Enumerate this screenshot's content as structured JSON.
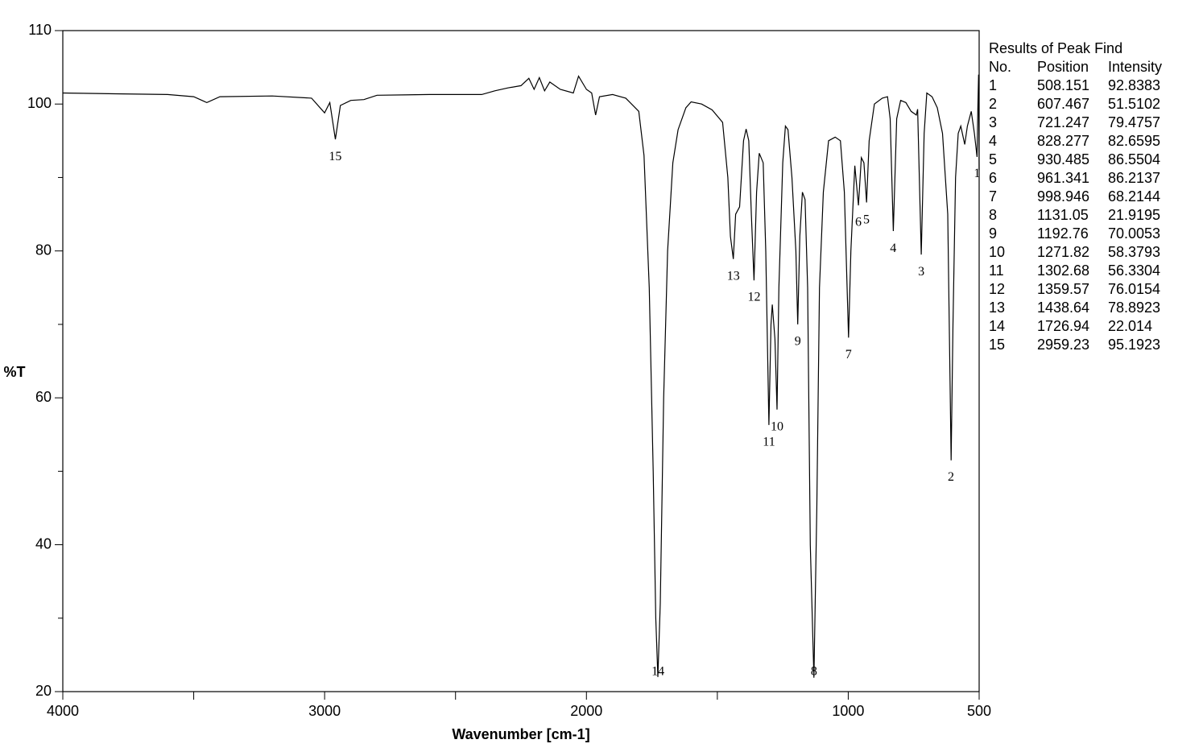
{
  "chart_data": {
    "type": "line",
    "xlabel": "Wavenumber [cm-1]",
    "ylabel": "%T",
    "color": "#000000",
    "xlim": [
      4000,
      500
    ],
    "ylim": [
      20,
      110
    ],
    "xticks": [
      4000,
      3000,
      2000,
      1000,
      500
    ],
    "xminor_ticks": [
      3500,
      2500,
      1500
    ],
    "yticks": [
      20,
      40,
      60,
      80,
      100,
      110
    ],
    "yminor_ticks": [
      30,
      50,
      70,
      90
    ],
    "x": [
      4000,
      3800,
      3600,
      3500,
      3450,
      3400,
      3200,
      3050,
      3000,
      2980,
      2959,
      2940,
      2900,
      2850,
      2800,
      2600,
      2400,
      2350,
      2300,
      2250,
      2220,
      2200,
      2180,
      2160,
      2140,
      2100,
      2050,
      2030,
      2000,
      1980,
      1965,
      1950,
      1900,
      1850,
      1800,
      1780,
      1760,
      1745,
      1735,
      1727,
      1718,
      1705,
      1690,
      1670,
      1650,
      1620,
      1600,
      1560,
      1520,
      1480,
      1460,
      1450,
      1439,
      1430,
      1415,
      1400,
      1390,
      1380,
      1370,
      1360,
      1350,
      1340,
      1325,
      1315,
      1303,
      1295,
      1290,
      1280,
      1272,
      1265,
      1250,
      1240,
      1230,
      1215,
      1200,
      1193,
      1185,
      1175,
      1165,
      1155,
      1145,
      1131,
      1120,
      1110,
      1095,
      1075,
      1050,
      1030,
      1015,
      999,
      990,
      975,
      961,
      950,
      940,
      930,
      920,
      900,
      870,
      850,
      840,
      828,
      815,
      800,
      780,
      760,
      740,
      735,
      721,
      710,
      700,
      680,
      660,
      640,
      620,
      607,
      600,
      590,
      580,
      570,
      555,
      545,
      530,
      518,
      508,
      505,
      502,
      500
    ],
    "values": [
      101.5,
      101.4,
      101.3,
      101.0,
      100.2,
      101.0,
      101.1,
      100.8,
      98.8,
      100.2,
      95.2,
      99.8,
      100.5,
      100.6,
      101.2,
      101.3,
      101.3,
      101.8,
      102.2,
      102.5,
      103.5,
      102,
      103.6,
      101.8,
      103,
      102,
      101.5,
      103.8,
      102,
      101.5,
      98.5,
      101,
      101.3,
      100.8,
      99,
      93,
      75,
      50,
      30,
      22.0,
      32,
      60,
      80,
      92,
      96.5,
      99.5,
      100.3,
      100.0,
      99.2,
      97.5,
      90,
      82,
      78.9,
      85,
      86,
      95,
      96.6,
      95,
      85,
      76.0,
      88,
      93.3,
      92,
      80,
      56.3,
      70,
      72.7,
      68,
      58.4,
      75,
      92,
      97,
      96.5,
      90,
      80,
      70.0,
      82,
      88,
      87,
      75,
      40,
      21.9,
      45,
      75,
      88,
      95,
      95.5,
      95,
      88,
      68.2,
      80,
      91.6,
      86.2,
      92.7,
      92,
      86.6,
      95,
      100,
      100.8,
      101,
      98,
      82.7,
      98,
      100.5,
      100.2,
      99,
      98.5,
      99.3,
      79.5,
      96,
      101.5,
      101,
      99.5,
      96,
      85,
      51.5,
      70,
      90,
      96,
      97,
      94.5,
      97,
      99,
      96,
      92.8,
      99.5,
      104,
      91
    ],
    "peaks": {
      "title": "Results of Peak Find",
      "columns": [
        "No.",
        "Position",
        "Intensity"
      ],
      "rows": [
        [
          1,
          508.151,
          92.8383
        ],
        [
          2,
          607.467,
          51.5102
        ],
        [
          3,
          721.247,
          79.4757
        ],
        [
          4,
          828.277,
          82.6595
        ],
        [
          5,
          930.485,
          86.5504
        ],
        [
          6,
          961.341,
          86.2137
        ],
        [
          7,
          998.946,
          68.2144
        ],
        [
          8,
          1131.05,
          21.9195
        ],
        [
          9,
          1192.76,
          70.0053
        ],
        [
          10,
          1271.82,
          58.3793
        ],
        [
          11,
          1302.68,
          56.3304
        ],
        [
          12,
          1359.57,
          76.0154
        ],
        [
          13,
          1438.64,
          78.8923
        ],
        [
          14,
          1726.94,
          22.014
        ],
        [
          15,
          2959.23,
          95.1923
        ]
      ]
    }
  }
}
